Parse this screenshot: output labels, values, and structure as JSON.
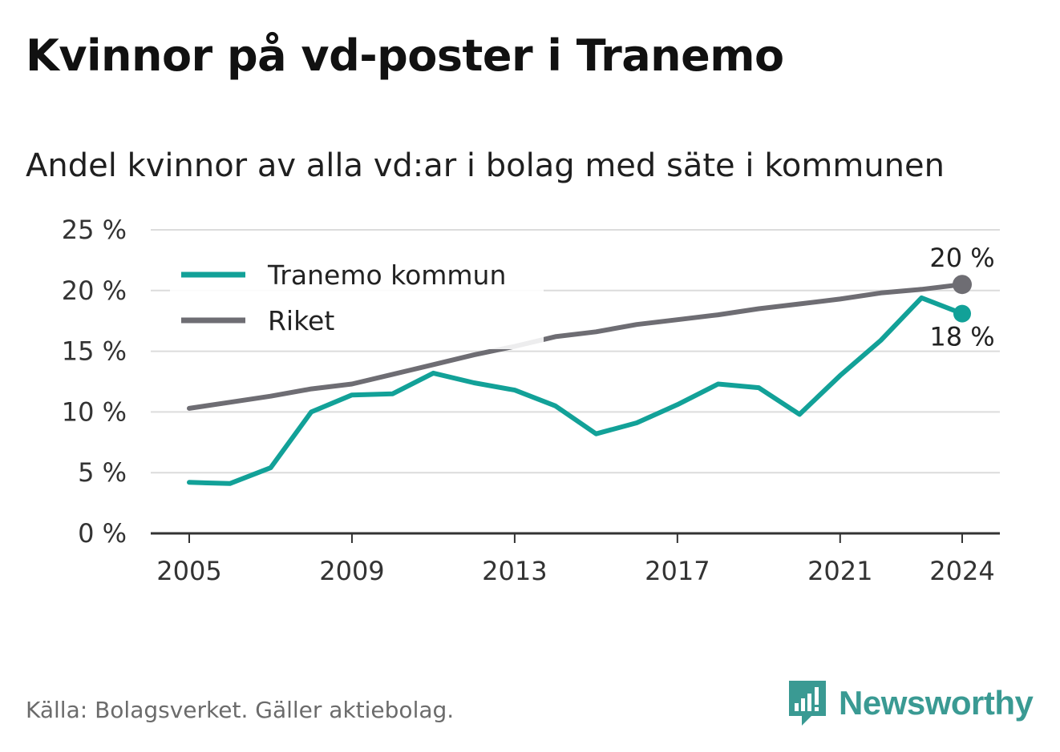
{
  "header": {
    "title": "Kvinnor på vd-poster i Tranemo",
    "subtitle": "Andel kvinnor av alla vd:ar i bolag med säte i kommunen"
  },
  "footer": {
    "source": "Källa: Bolagsverket. Gäller aktiebolag.",
    "brand": "Newsworthy"
  },
  "chart_data": {
    "type": "line",
    "x": [
      2005,
      2006,
      2007,
      2008,
      2009,
      2010,
      2011,
      2012,
      2013,
      2014,
      2015,
      2016,
      2017,
      2018,
      2019,
      2020,
      2021,
      2022,
      2023,
      2024
    ],
    "series": [
      {
        "name": "Tranemo kommun",
        "color": "#12a198",
        "values": [
          4.2,
          4.1,
          5.4,
          10.0,
          11.4,
          11.5,
          13.2,
          12.4,
          11.8,
          10.5,
          8.2,
          9.1,
          10.6,
          12.3,
          12.0,
          9.8,
          13.0,
          15.9,
          19.4,
          18.1
        ],
        "end_label": "18 %"
      },
      {
        "name": "Riket",
        "color": "#6e6d73",
        "values": [
          10.3,
          10.8,
          11.3,
          11.9,
          12.3,
          13.1,
          13.9,
          14.7,
          15.4,
          16.2,
          16.6,
          17.2,
          17.6,
          18.0,
          18.5,
          18.9,
          19.3,
          19.8,
          20.1,
          20.5
        ],
        "end_label": "20 %"
      }
    ],
    "x_ticks": [
      2005,
      2009,
      2013,
      2017,
      2021,
      2024
    ],
    "x_tick_labels": [
      "2005",
      "2009",
      "2013",
      "2017",
      "2021",
      "2024"
    ],
    "y_ticks": [
      0,
      5,
      10,
      15,
      20,
      25
    ],
    "y_tick_labels": [
      "0 %",
      "5 %",
      "10 %",
      "15 %",
      "20 %",
      "25 %"
    ],
    "ylim": [
      0,
      25
    ],
    "xlim": [
      2005,
      2024
    ],
    "grid": true,
    "legend": "top-left"
  }
}
